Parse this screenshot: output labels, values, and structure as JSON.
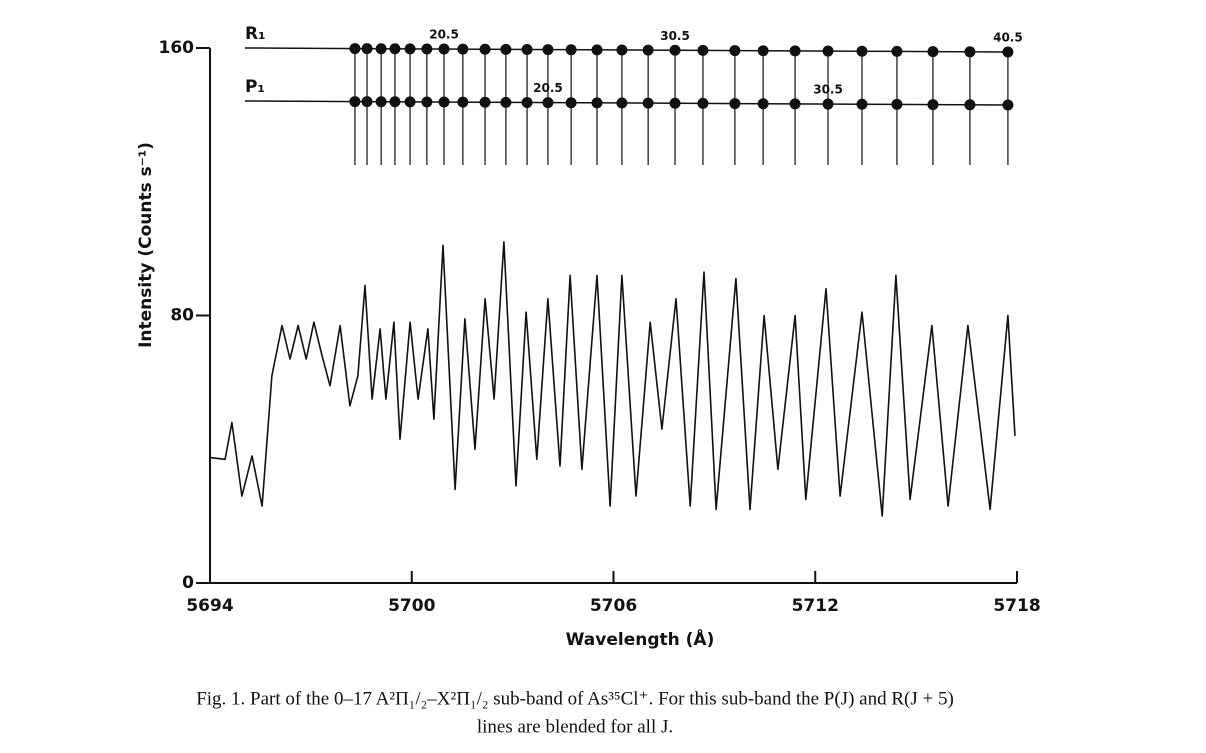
{
  "chart_data": {
    "type": "line",
    "x_label": "Wavelength (Å)",
    "y_label": "Intensity (Counts s⁻¹)",
    "xlim": [
      5694,
      5718
    ],
    "xticks": [
      5694,
      5700,
      5706,
      5712,
      5718
    ],
    "ylim": [
      0,
      160
    ],
    "yticks": [
      0,
      80,
      160
    ],
    "series": [
      {
        "color": "#111111",
        "x": [
          5694.0,
          5694.45,
          5694.65,
          5694.95,
          5695.25,
          5695.55,
          5695.84,
          5696.14,
          5696.38,
          5696.62,
          5696.86,
          5697.09,
          5697.33,
          5697.57,
          5697.87,
          5698.16,
          5698.4,
          5698.61,
          5698.82,
          5699.06,
          5699.23,
          5699.47,
          5699.65,
          5699.95,
          5700.19,
          5700.48,
          5700.66,
          5700.93,
          5701.29,
          5701.58,
          5701.88,
          5702.18,
          5702.45,
          5702.74,
          5703.1,
          5703.4,
          5703.72,
          5704.05,
          5704.41,
          5704.71,
          5705.06,
          5705.51,
          5705.9,
          5706.25,
          5706.67,
          5707.09,
          5707.44,
          5707.86,
          5708.28,
          5708.69,
          5709.05,
          5709.64,
          5710.06,
          5710.48,
          5710.89,
          5711.4,
          5711.72,
          5712.32,
          5712.74,
          5713.39,
          5713.99,
          5714.4,
          5714.82,
          5715.47,
          5715.95,
          5716.54,
          5717.2,
          5717.73,
          5717.94
        ],
        "values": [
          37.5,
          37,
          48,
          26,
          38,
          23,
          62,
          77,
          67,
          77,
          67,
          78,
          68,
          59,
          77,
          53,
          62,
          89,
          55,
          76,
          55,
          78,
          43,
          78,
          55,
          76,
          49,
          101,
          28,
          79,
          40,
          85,
          55,
          102,
          29,
          81,
          37,
          85,
          35,
          92,
          34,
          92,
          23,
          92,
          26,
          78,
          46,
          85,
          23,
          93,
          22,
          91,
          22,
          80,
          34,
          80,
          25,
          88,
          26,
          81,
          20,
          92,
          25,
          77,
          23,
          77,
          22,
          80,
          44
        ]
      }
    ],
    "ladders": [
      {
        "name": "R₁",
        "x": [
          5698.31,
          5698.67,
          5699.09,
          5699.5,
          5699.95,
          5700.45,
          5700.96,
          5701.52,
          5702.18,
          5702.8,
          5703.43,
          5704.05,
          5704.74,
          5705.51,
          5706.25,
          5707.03,
          5707.83,
          5708.66,
          5709.61,
          5710.45,
          5711.4,
          5712.38,
          5713.39,
          5714.43,
          5715.5,
          5716.6,
          5717.73
        ],
        "point_labels": [
          null,
          null,
          null,
          null,
          null,
          null,
          20.5,
          null,
          null,
          null,
          null,
          null,
          null,
          null,
          null,
          null,
          30.5,
          null,
          null,
          null,
          null,
          null,
          null,
          null,
          null,
          null,
          40.5
        ]
      },
      {
        "name": "P₁",
        "x": [
          5698.31,
          5698.67,
          5699.09,
          5699.5,
          5699.95,
          5700.45,
          5700.96,
          5701.52,
          5702.18,
          5702.8,
          5703.43,
          5704.05,
          5704.74,
          5705.51,
          5706.25,
          5707.03,
          5707.83,
          5708.66,
          5709.61,
          5710.45,
          5711.4,
          5712.38,
          5713.39,
          5714.43,
          5715.5,
          5716.6,
          5717.73
        ],
        "point_labels": [
          null,
          null,
          null,
          null,
          null,
          null,
          null,
          null,
          null,
          null,
          null,
          20.5,
          null,
          null,
          null,
          null,
          null,
          null,
          null,
          null,
          null,
          30.5,
          null,
          null,
          null,
          null,
          null
        ]
      }
    ],
    "caption": [
      "Fig. 1.  Part of the 0–17 A²Π₁/₂–X²Π₁/₂ sub-band of As³⁵Cl⁺. For this sub-band the P(J) and R(J + 5)",
      "lines are blended for all J."
    ]
  }
}
